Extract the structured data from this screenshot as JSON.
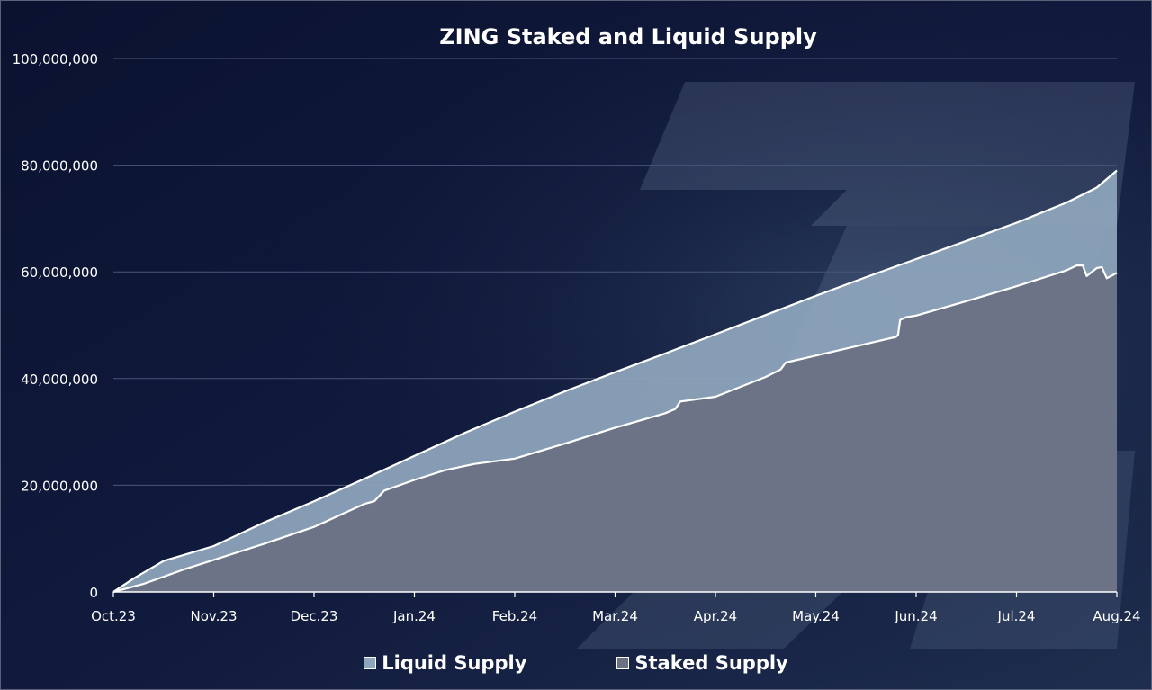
{
  "chart_data": {
    "type": "area",
    "title": "ZING Staked and Liquid Supply",
    "xlabel": "",
    "ylabel": "",
    "x_labels": [
      "Oct.23",
      "Nov.23",
      "Dec.23",
      "Jan.24",
      "Feb.24",
      "Mar.24",
      "Apr.24",
      "May.24",
      "Jun.24",
      "Jul.24",
      "Aug.24"
    ],
    "ylim": [
      0,
      100000000
    ],
    "y_ticks": [
      0,
      20000000,
      40000000,
      60000000,
      80000000,
      100000000
    ],
    "y_tick_labels": [
      "0",
      "20,000,000",
      "40,000,000",
      "60,000,000",
      "80,000,000",
      "100,000,000"
    ],
    "grid": true,
    "legend_position": "bottom",
    "series": [
      {
        "name": "Liquid Supply",
        "color": "#8fa7be",
        "points": [
          [
            0,
            0
          ],
          [
            0.2,
            2500000
          ],
          [
            0.5,
            5800000
          ],
          [
            1.0,
            8600000
          ],
          [
            1.5,
            13000000
          ],
          [
            2.0,
            17000000
          ],
          [
            2.5,
            21200000
          ],
          [
            3.0,
            25500000
          ],
          [
            3.5,
            29800000
          ],
          [
            4.0,
            33800000
          ],
          [
            4.5,
            37600000
          ],
          [
            5.0,
            41200000
          ],
          [
            5.5,
            44700000
          ],
          [
            6.0,
            48300000
          ],
          [
            6.5,
            51900000
          ],
          [
            7.0,
            55500000
          ],
          [
            7.5,
            59000000
          ],
          [
            8.0,
            62400000
          ],
          [
            8.5,
            65800000
          ],
          [
            9.0,
            69200000
          ],
          [
            9.5,
            73000000
          ],
          [
            9.8,
            75800000
          ],
          [
            10.0,
            79000000
          ]
        ]
      },
      {
        "name": "Staked Supply",
        "color": "#6b7184",
        "points": [
          [
            0,
            0
          ],
          [
            0.3,
            1500000
          ],
          [
            0.7,
            4200000
          ],
          [
            1.0,
            6000000
          ],
          [
            1.5,
            9000000
          ],
          [
            2.0,
            12200000
          ],
          [
            2.5,
            16500000
          ],
          [
            2.6,
            17000000
          ],
          [
            2.7,
            19000000
          ],
          [
            3.0,
            21000000
          ],
          [
            3.3,
            22800000
          ],
          [
            3.6,
            24000000
          ],
          [
            4.0,
            25000000
          ],
          [
            4.5,
            27800000
          ],
          [
            5.0,
            30800000
          ],
          [
            5.5,
            33500000
          ],
          [
            5.6,
            34300000
          ],
          [
            5.65,
            35700000
          ],
          [
            6.0,
            36600000
          ],
          [
            6.5,
            40300000
          ],
          [
            6.65,
            41700000
          ],
          [
            6.7,
            43000000
          ],
          [
            7.0,
            44300000
          ],
          [
            7.5,
            46500000
          ],
          [
            7.8,
            47800000
          ],
          [
            7.82,
            48200000
          ],
          [
            7.84,
            51000000
          ],
          [
            7.9,
            51500000
          ],
          [
            8.0,
            51800000
          ],
          [
            8.5,
            54500000
          ],
          [
            9.0,
            57300000
          ],
          [
            9.5,
            60300000
          ],
          [
            9.6,
            61200000
          ],
          [
            9.66,
            61200000
          ],
          [
            9.7,
            59200000
          ],
          [
            9.8,
            60700000
          ],
          [
            9.85,
            60900000
          ],
          [
            9.9,
            58800000
          ],
          [
            10.0,
            59800000
          ]
        ]
      }
    ]
  }
}
